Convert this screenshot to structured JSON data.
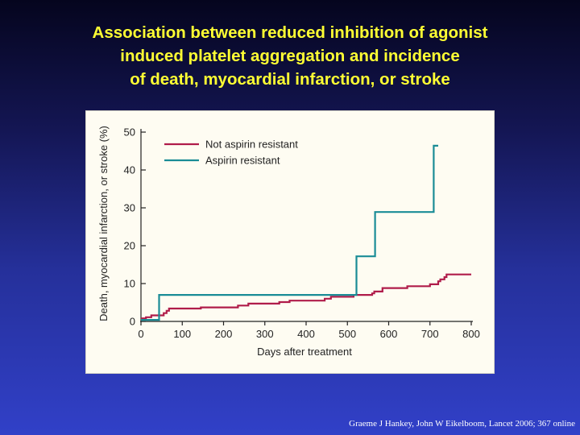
{
  "slide": {
    "title_lines": [
      "Association between reduced inhibition of agonist",
      "induced platelet  aggregation and incidence",
      "of death, myocardial infarction, or stroke"
    ],
    "citation": "Graeme J Hankey, John W Eikelboom, Lancet 2006; 367 online"
  },
  "chart_data": {
    "type": "line",
    "title": "",
    "xlabel": "Days after treatment",
    "ylabel": "Death, myocardial infarction, or stroke (%)",
    "xlim": [
      0,
      800
    ],
    "ylim": [
      0,
      50
    ],
    "xticks": [
      0,
      100,
      200,
      300,
      400,
      500,
      600,
      700,
      800
    ],
    "yticks": [
      0,
      10,
      20,
      30,
      40,
      50
    ],
    "grid": false,
    "legend_position": "top-left",
    "series": [
      {
        "name": "Not aspirin resistant",
        "color": "#b01c4a",
        "step": true,
        "points": [
          [
            0,
            0.8
          ],
          [
            12,
            1.1
          ],
          [
            25,
            1.6
          ],
          [
            45,
            1.6
          ],
          [
            55,
            2.2
          ],
          [
            62,
            2.8
          ],
          [
            68,
            3.4
          ],
          [
            140,
            3.4
          ],
          [
            145,
            3.7
          ],
          [
            230,
            3.7
          ],
          [
            235,
            4.2
          ],
          [
            255,
            4.2
          ],
          [
            260,
            4.7
          ],
          [
            330,
            4.7
          ],
          [
            335,
            5.1
          ],
          [
            355,
            5.1
          ],
          [
            360,
            5.5
          ],
          [
            440,
            5.5
          ],
          [
            445,
            6.0
          ],
          [
            455,
            6.0
          ],
          [
            460,
            6.5
          ],
          [
            505,
            6.5
          ],
          [
            515,
            7.0
          ],
          [
            540,
            7.0
          ],
          [
            560,
            7.4
          ],
          [
            565,
            7.9
          ],
          [
            580,
            7.9
          ],
          [
            585,
            8.8
          ],
          [
            640,
            8.8
          ],
          [
            645,
            9.3
          ],
          [
            695,
            9.3
          ],
          [
            700,
            9.8
          ],
          [
            715,
            9.8
          ],
          [
            720,
            10.6
          ],
          [
            725,
            11.1
          ],
          [
            735,
            11.7
          ],
          [
            740,
            12.4
          ],
          [
            800,
            12.4
          ]
        ]
      },
      {
        "name": "Aspirin resistant",
        "color": "#1a8c96",
        "step": true,
        "points": [
          [
            0,
            0.4
          ],
          [
            42,
            0.4
          ],
          [
            44,
            7.0
          ],
          [
            520,
            7.0
          ],
          [
            522,
            17.2
          ],
          [
            565,
            17.2
          ],
          [
            567,
            28.9
          ],
          [
            707,
            28.9
          ],
          [
            709,
            46.4
          ],
          [
            720,
            46.4
          ]
        ]
      }
    ]
  }
}
